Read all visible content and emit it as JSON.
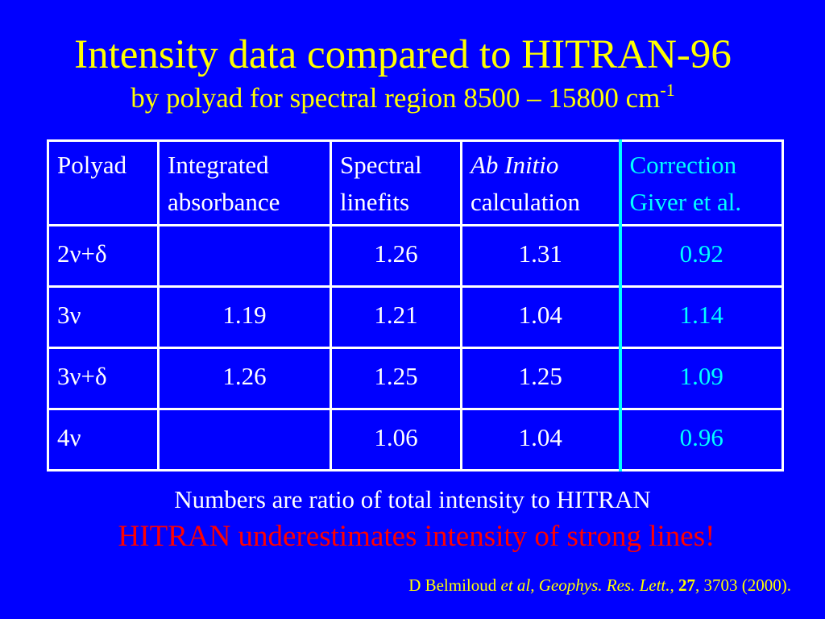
{
  "slide": {
    "title": "Intensity data compared to HITRAN-96",
    "subtitle_main": "by polyad for spectral region 8500 – 15800 cm",
    "subtitle_sup": "-1"
  },
  "table": {
    "headers": [
      {
        "line1": "Polyad",
        "line2": ""
      },
      {
        "line1": "Integrated",
        "line2": "absorbance"
      },
      {
        "line1": "Spectral",
        "line2": "linefits"
      },
      {
        "line1": "Ab Initio",
        "line2": "calculation"
      },
      {
        "line1": "Correction",
        "line2": "Giver et al."
      }
    ],
    "rows": [
      {
        "polyad": "2ν+δ",
        "integrated": "",
        "spectral": "1.26",
        "ab_initio": "1.31",
        "correction": "0.92"
      },
      {
        "polyad": "3ν",
        "integrated": "1.19",
        "spectral": "1.21",
        "ab_initio": "1.04",
        "correction": "1.14"
      },
      {
        "polyad": "3ν+δ",
        "integrated": "1.26",
        "spectral": "1.25",
        "ab_initio": "1.25",
        "correction": "1.09"
      },
      {
        "polyad": "4ν",
        "integrated": "",
        "spectral": "1.06",
        "ab_initio": "1.04",
        "correction": "0.96"
      }
    ]
  },
  "note": "Numbers are ratio of total intensity to HITRAN",
  "emphasis": "HITRAN underestimates intensity of strong lines!",
  "reference": {
    "author": "D Belmiloud ",
    "journal": "et al, Geophys. Res. Lett.,",
    "volume": "27",
    "rest": ", 3703 (2000)."
  },
  "colors": {
    "background": "#0000ff",
    "title": "#ffff00",
    "table_text": "#ffffff",
    "correction_column": "#00ffff",
    "emphasis": "#ff0000"
  }
}
